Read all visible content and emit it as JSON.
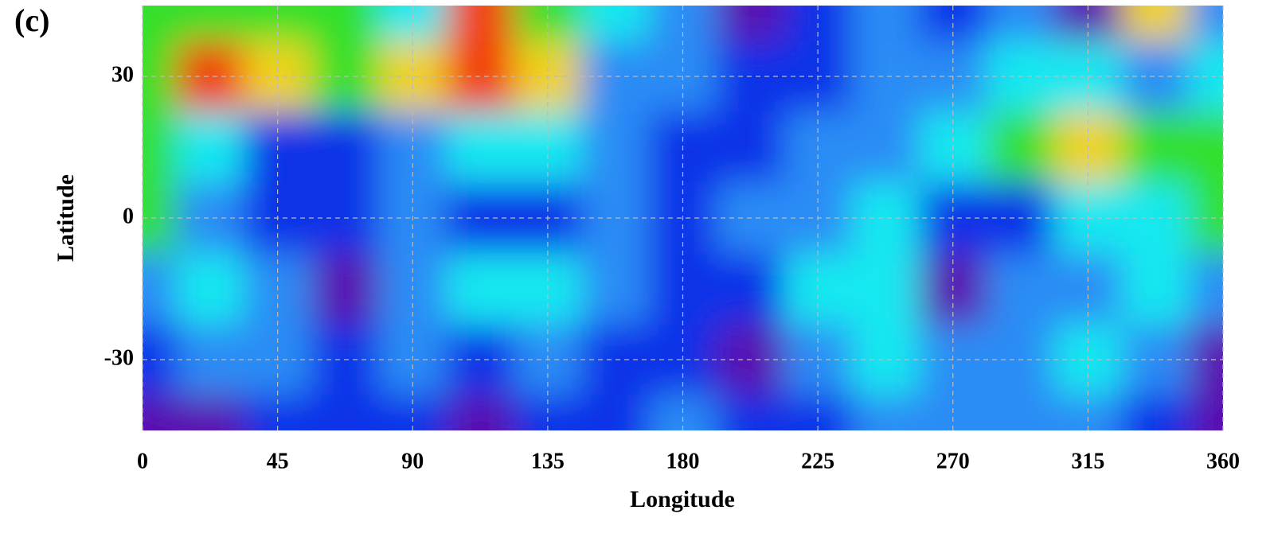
{
  "chart_data": {
    "type": "heatmap",
    "panel_label": "(c)",
    "xlabel": "Longitude",
    "ylabel": "Latitude",
    "xlim": [
      0,
      360
    ],
    "ylim": [
      -45,
      45
    ],
    "xticks": [
      0,
      45,
      90,
      135,
      180,
      225,
      270,
      315,
      360
    ],
    "yticks": [
      -30,
      0,
      30
    ],
    "grid": true,
    "colorscale": [
      "#5a0fb0",
      "#1030e8",
      "#2a8cf5",
      "#17e8f0",
      "#33e02a",
      "#f0d21c",
      "#f23e10"
    ],
    "x": [
      0,
      22.5,
      45,
      67.5,
      90,
      112.5,
      135,
      157.5,
      180,
      202.5,
      225,
      247.5,
      270,
      292.5,
      315,
      337.5,
      360
    ],
    "y": [
      45,
      30,
      15,
      0,
      -15,
      -30,
      -45
    ],
    "z": [
      [
        4,
        4,
        4,
        4,
        3,
        6,
        4,
        3,
        2,
        0,
        1,
        2,
        1,
        2,
        0,
        5,
        2
      ],
      [
        4,
        6,
        5,
        4,
        5,
        6,
        5,
        2,
        2,
        1,
        1,
        2,
        2,
        3,
        3,
        2,
        3
      ],
      [
        4,
        3,
        1,
        1,
        2,
        3,
        3,
        2,
        1,
        1,
        2,
        2,
        3,
        4,
        5,
        4,
        4
      ],
      [
        4,
        2,
        1,
        1,
        2,
        1,
        1,
        2,
        1,
        2,
        2,
        3,
        1,
        1,
        3,
        3,
        4
      ],
      [
        2,
        3,
        2,
        0,
        2,
        3,
        3,
        2,
        1,
        1,
        3,
        3,
        0,
        2,
        2,
        3,
        2
      ],
      [
        1,
        2,
        2,
        1,
        2,
        1,
        2,
        1,
        1,
        0,
        2,
        3,
        2,
        2,
        3,
        2,
        0
      ],
      [
        0,
        0,
        1,
        1,
        1,
        0,
        1,
        1,
        2,
        1,
        1,
        2,
        2,
        2,
        2,
        1,
        0
      ]
    ]
  }
}
